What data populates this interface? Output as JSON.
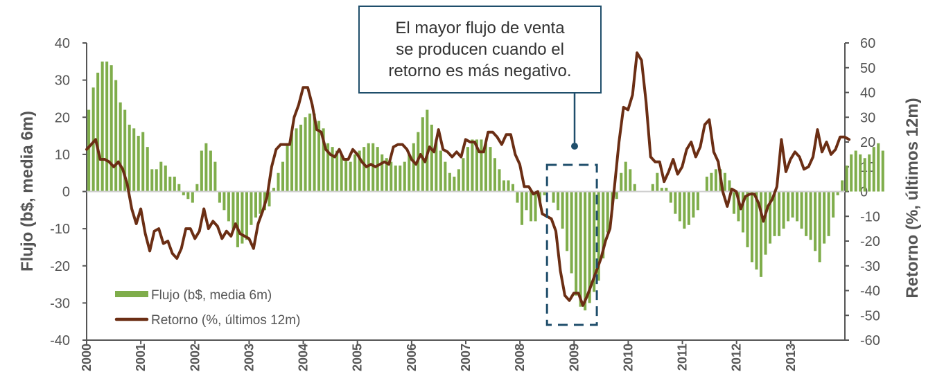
{
  "chart_data": {
    "type": "bar+line",
    "title": "",
    "x_tick_labels": [
      "2000",
      "2001",
      "2002",
      "2003",
      "2004",
      "2005",
      "2006",
      "2007",
      "2008",
      "2009",
      "2010",
      "2011",
      "2012",
      "2013"
    ],
    "x_start": 2000.0,
    "x_end": 2014.0,
    "y_left": {
      "label": "Flujo (b$, media 6m)",
      "lim": [
        -40,
        40
      ],
      "ticks": [
        40,
        30,
        20,
        10,
        0,
        -10,
        -20,
        -30,
        -40
      ]
    },
    "y_right": {
      "label": "Retorno (%, últimos 12m)",
      "lim": [
        -60,
        60
      ],
      "ticks": [
        60,
        50,
        40,
        30,
        20,
        10,
        0,
        -10,
        -20,
        -30,
        -40,
        -50,
        -60
      ]
    },
    "legend": {
      "position": "bottom-left",
      "entries": [
        "Flujo (b$, media 6m)",
        "Retorno (%, últimos 12m)"
      ]
    },
    "annotation": {
      "text": "El mayor flujo de venta\nse producen cuando el\nretorno es más negativo.",
      "highlight_x_range": [
        2008.5,
        2009.42
      ]
    },
    "series": [
      {
        "name": "Flujo (b$, media 6m)",
        "kind": "bar",
        "axis": "left",
        "color": "#7fad4b",
        "x_start": 2000.04,
        "x_step": 0.0833,
        "values": [
          22,
          28,
          32,
          35,
          35,
          34,
          30,
          24,
          22,
          18,
          17,
          15,
          16,
          12,
          6,
          6,
          8,
          7,
          4,
          4,
          2,
          -1,
          -2,
          -3,
          2,
          11,
          13,
          11,
          8,
          -3,
          -5,
          -8,
          -10,
          -15,
          -14,
          -13,
          -9,
          -7,
          -6,
          -5,
          -4,
          1,
          5,
          8,
          13,
          16,
          17,
          18,
          20,
          21,
          21,
          19,
          17,
          13,
          12,
          11,
          10,
          9,
          8,
          10,
          11,
          12,
          13,
          13,
          12,
          10,
          9,
          8,
          7,
          7,
          8,
          10,
          13,
          16,
          20,
          22,
          18,
          14,
          11,
          8,
          5,
          4,
          6,
          9,
          12,
          14,
          14,
          14,
          13,
          12,
          9,
          6,
          3,
          3,
          2,
          -3,
          -9,
          -5,
          -8,
          -8,
          -3,
          -1,
          0,
          -3,
          -5,
          -10,
          -16,
          -22,
          -28,
          -31,
          -32,
          -30,
          -27,
          -24,
          -18,
          -11,
          -5,
          -2,
          5,
          8,
          6,
          2,
          0,
          0,
          0,
          2,
          5,
          1,
          1,
          -3,
          -6,
          -8,
          -10,
          -9,
          -7,
          -5,
          0,
          4,
          5,
          6,
          6,
          5,
          3,
          -6,
          -8,
          -11,
          -15,
          -19,
          -21,
          -23,
          -17,
          -14,
          -12,
          -12,
          -10,
          -8,
          -7,
          -8,
          -10,
          -12,
          -13,
          -16,
          -19,
          -14,
          -12,
          -7,
          -1,
          3,
          7,
          10,
          11,
          10,
          9,
          10,
          12,
          13,
          11
        ]
      },
      {
        "name": "Retorno (%, últimos 12m)",
        "kind": "line",
        "axis": "right",
        "color": "#6b2e14",
        "x_start": 2000.0,
        "x_step": 0.0833,
        "values": [
          17,
          19,
          21,
          13,
          13,
          12,
          10,
          12,
          9,
          3,
          -7,
          -13,
          -7,
          -17,
          -24,
          -16,
          -15,
          -21,
          -20,
          -25,
          -27,
          -23,
          -15,
          -15,
          -19,
          -16,
          -7,
          -15,
          -12,
          -14,
          -19,
          -16,
          -18,
          -13,
          -17,
          -18,
          -19,
          -23,
          -13,
          -8,
          -2,
          10,
          17,
          19,
          19,
          19,
          30,
          35,
          42,
          42,
          35,
          25,
          24,
          17,
          15,
          14,
          17,
          13,
          13,
          17,
          15,
          12,
          10,
          11,
          10,
          11,
          12,
          11,
          18,
          19,
          19,
          17,
          13,
          11,
          15,
          12,
          18,
          16,
          25,
          17,
          16,
          14,
          16,
          14,
          21,
          20,
          20,
          16,
          16,
          24,
          24,
          22,
          19,
          23,
          23,
          15,
          11,
          2,
          2,
          -1,
          0,
          -9,
          -10,
          -11,
          -16,
          -32,
          -42,
          -44,
          -41,
          -41,
          -46,
          -42,
          -37,
          -32,
          -27,
          -20,
          -15,
          2,
          20,
          34,
          33,
          39,
          56,
          53,
          36,
          14,
          12,
          12,
          4,
          8,
          13,
          7,
          10,
          17,
          20,
          14,
          18,
          27,
          29,
          16,
          12,
          0,
          -6,
          1,
          0,
          -7,
          -2,
          -1,
          -1,
          -5,
          -12,
          -6,
          -3,
          2,
          21,
          8,
          13,
          16,
          14,
          9,
          10,
          14,
          25,
          16,
          20,
          15,
          17,
          22,
          22,
          21
        ]
      }
    ]
  }
}
